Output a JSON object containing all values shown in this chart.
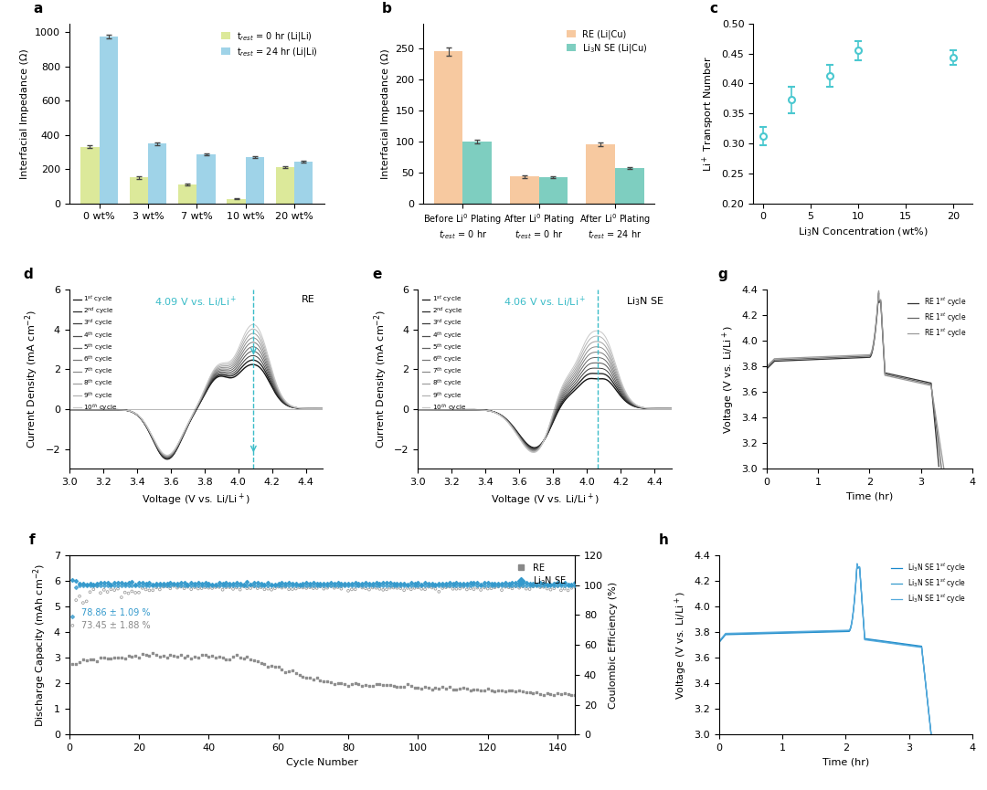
{
  "panel_a": {
    "categories": [
      "0 wt%",
      "3 wt%",
      "7 wt%",
      "10 wt%",
      "20 wt%"
    ],
    "t0_values": [
      330,
      150,
      110,
      25,
      210
    ],
    "t24_values": [
      975,
      350,
      285,
      268,
      245
    ],
    "t0_errors": [
      8,
      6,
      5,
      3,
      6
    ],
    "t24_errors": [
      12,
      8,
      6,
      5,
      5
    ],
    "ylabel": "Interfacial Impedance (Ω)",
    "ylim": [
      0,
      1050
    ],
    "color_t0": "#dce99a",
    "color_t24": "#9fd3e8",
    "label_t0": "t$_{rest}$ = 0 hr (Li|Li)",
    "label_t24": "t$_{rest}$ = 24 hr (Li|Li)"
  },
  "panel_b": {
    "re_values": [
      245,
      43,
      95
    ],
    "se_values": [
      100,
      42,
      57
    ],
    "re_errors": [
      7,
      2,
      3
    ],
    "se_errors": [
      3,
      2,
      2
    ],
    "ylabel": "Interfacial Impedance (Ω)",
    "ylim": [
      0,
      290
    ],
    "color_re": "#f7c9a0",
    "color_se": "#7ecec0",
    "label_re": "RE (Li|Cu)",
    "label_se": "Li$_3$N SE (Li|Cu)"
  },
  "panel_c": {
    "x": [
      0,
      3,
      7,
      10,
      20
    ],
    "y": [
      0.312,
      0.373,
      0.413,
      0.455,
      0.443
    ],
    "yerr": [
      0.015,
      0.022,
      0.018,
      0.016,
      0.012
    ],
    "xlabel": "Li$_3$N Concentration (wt%)",
    "ylabel": "Li$^+$ Transport Number",
    "ylim": [
      0.2,
      0.5
    ],
    "color": "#4ac8d0"
  },
  "panel_d": {
    "title": "4.09 V vs. Li/Li$^+$",
    "xlabel": "Voltage (V vs. Li/Li$^+$)",
    "ylabel": "Current Density (mA cm$^{-2}$)",
    "xlim": [
      3.0,
      4.5
    ],
    "ylim": [
      -3.0,
      6.0
    ],
    "label": "RE",
    "dashed_x": 4.09,
    "legend_cycles": [
      "1$^{st}$ cycle",
      "2$^{nd}$ cycle",
      "3$^{rd}$ cycle",
      "4$^{th}$ cycle",
      "5$^{th}$ cycle",
      "6$^{th}$ cycle",
      "7$^{th}$ cycle",
      "8$^{th}$ cycle",
      "9$^{th}$ cycle",
      "10$^{th}$ cycle"
    ]
  },
  "panel_e": {
    "title": "4.06 V vs. Li/Li$^+$",
    "xlabel": "Voltage (V vs. Li/Li$^+$)",
    "ylabel": "Current Density (mA cm$^{-2}$)",
    "xlim": [
      3.0,
      4.5
    ],
    "ylim": [
      -3.0,
      6.0
    ],
    "label": "Li$_3$N SE",
    "dashed_x": 4.06,
    "legend_cycles": [
      "1$^{st}$ cycle",
      "2$^{nd}$ cycle",
      "3$^{rd}$ cycle",
      "4$^{th}$ cycle",
      "5$^{th}$ cycle",
      "6$^{th}$ cycle",
      "7$^{th}$ cycle",
      "8$^{th}$ cycle",
      "9$^{th}$ cycle",
      "10$^{th}$ cycle"
    ]
  },
  "panel_f": {
    "xlabel": "Cycle Number",
    "ylabel_left": "Discharge Capacity (mAh cm$^{-2}$)",
    "ylabel_right": "Coulombic Efficiency (%)",
    "xlim": [
      0,
      145
    ],
    "ylim_left": [
      0,
      7
    ],
    "ylim_right": [
      0,
      120
    ],
    "label_re": "RE",
    "label_se": "Li$_3$N SE",
    "re_capacity_color": "#888888",
    "se_capacity_color": "#3399cc",
    "annotation1": "78.86 ± 1.09 %",
    "annotation2": "73.45 ± 1.88 %"
  },
  "panel_g": {
    "xlabel": "Time (hr)",
    "ylabel": "Voltage (V vs. Li/Li$^+$)",
    "xlim": [
      0,
      4
    ],
    "ylim": [
      3.0,
      4.4
    ],
    "labels": [
      "RE 1$^{st}$ cycle",
      "RE 1$^{st}$ cycle",
      "RE 1$^{st}$ cycle"
    ],
    "colors": [
      "#333333",
      "#666666",
      "#999999"
    ]
  },
  "panel_h": {
    "xlabel": "Time (hr)",
    "ylabel": "Voltage (V vs. Li/Li$^+$)",
    "xlim": [
      0,
      4
    ],
    "ylim": [
      3.0,
      4.4
    ],
    "labels": [
      "Li$_3$N SE 1$^{st}$ cycle",
      "Li$_3$N SE 1$^{st}$ cycle",
      "Li$_3$N SE 1$^{st}$ cycle"
    ],
    "colors": [
      "#1a88cc",
      "#3399cc",
      "#55aadd"
    ]
  },
  "bg_color": "#ffffff",
  "panel_label_fontsize": 11,
  "tick_fontsize": 8,
  "label_fontsize": 8,
  "legend_fontsize": 7
}
